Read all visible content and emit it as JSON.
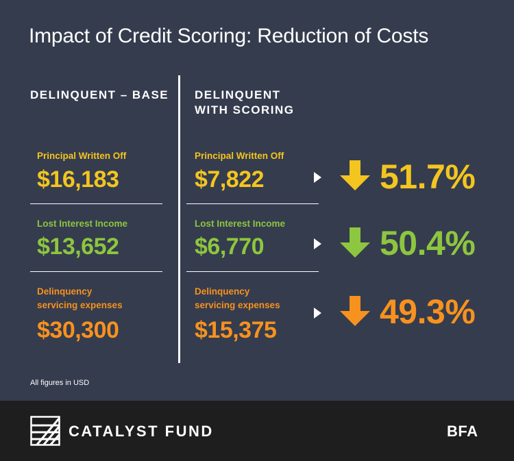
{
  "title": "Impact of Credit Scoring: Reduction of Costs",
  "columns": {
    "base_heading": "DELINQUENT – BASE",
    "scoring_heading_line1": "DELINQUENT",
    "scoring_heading_line2": "WITH SCORING"
  },
  "rows": [
    {
      "label_line1": "Principal Written Off",
      "label_line2": "",
      "base_value": "$16,183",
      "scoring_value": "$7,822",
      "reduction": "51.7%",
      "color": "#f3c51f"
    },
    {
      "label_line1": "Lost Interest Income",
      "label_line2": "",
      "base_value": "$13,652",
      "scoring_value": "$6,770",
      "reduction": "50.4%",
      "color": "#8dc63f"
    },
    {
      "label_line1": "Delinquency",
      "label_line2": "servicing expenses",
      "base_value": "$30,300",
      "scoring_value": "$15,375",
      "reduction": "49.3%",
      "color": "#f7921e"
    }
  ],
  "footnote": "All figures in USD",
  "footer": {
    "brand": "CATALYST FUND",
    "partner_logo_text": "BFA",
    "background": "#1e1e1e"
  },
  "colors": {
    "background": "#353c4e",
    "yellow": "#f3c51f",
    "green": "#8dc63f",
    "orange": "#f7921e"
  },
  "icons": [
    "down-arrow-icon",
    "right-triangle-icon",
    "catalyst-fund-logo-icon"
  ]
}
